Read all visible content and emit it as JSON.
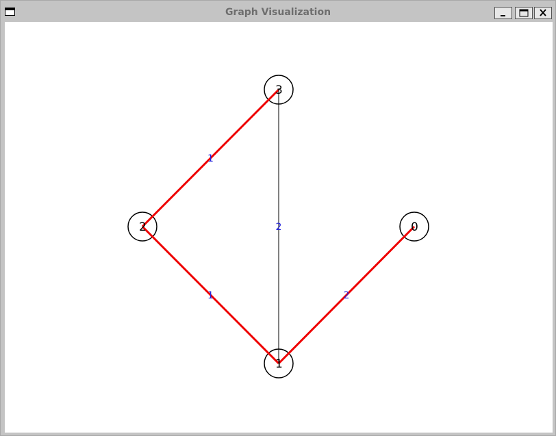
{
  "window": {
    "title": "Graph Visualization"
  },
  "chart_data": {
    "type": "graph",
    "nodes": [
      {
        "id": "0",
        "label": "0"
      },
      {
        "id": "1",
        "label": "1"
      },
      {
        "id": "2",
        "label": "2"
      },
      {
        "id": "3",
        "label": "3"
      }
    ],
    "edges": [
      {
        "from": "3",
        "to": "2",
        "weight": "1",
        "highlighted": true
      },
      {
        "from": "2",
        "to": "1",
        "weight": "1",
        "highlighted": true
      },
      {
        "from": "1",
        "to": "0",
        "weight": "2",
        "highlighted": true
      },
      {
        "from": "3",
        "to": "1",
        "weight": "2",
        "highlighted": false
      }
    ],
    "colors": {
      "highlight_edge": "#ee0000",
      "normal_edge": "#000000",
      "weight_text": "#2222dd",
      "node_stroke": "#000000"
    }
  }
}
